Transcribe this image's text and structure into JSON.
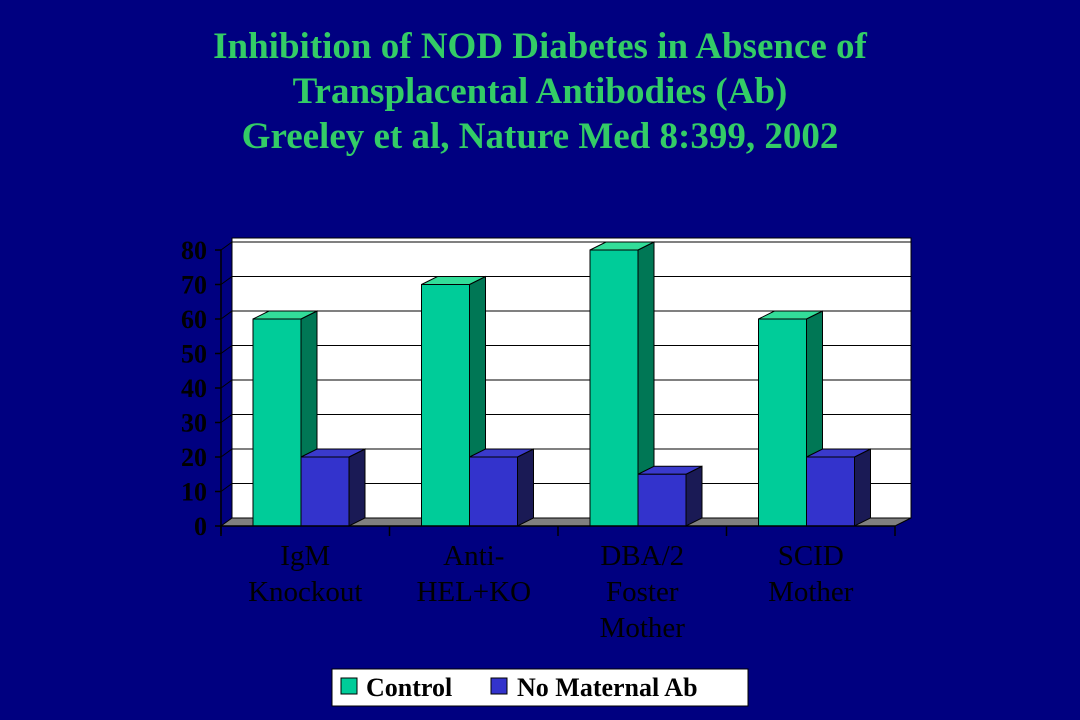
{
  "title_lines": [
    "Inhibition of NOD Diabetes in Absence of",
    "Transplacental Antibodies (Ab)",
    "Greeley et al, Nature Med 8:399, 2002"
  ],
  "chart_data": {
    "type": "bar",
    "style": "3d-clustered-column",
    "categories": [
      [
        "IgM",
        "Knockout"
      ],
      [
        "Anti-",
        "HEL+KO"
      ],
      [
        "DBA/2",
        "Foster",
        "Mother"
      ],
      [
        "SCID",
        "Mother"
      ]
    ],
    "series": [
      {
        "name": "Control",
        "values": [
          60,
          70,
          80,
          60
        ],
        "color": "#00cc99",
        "side_color": "#007755",
        "top_color": "#33dd99"
      },
      {
        "name": "No Maternal Ab",
        "values": [
          20,
          20,
          15,
          20
        ],
        "color": "#3333cc",
        "side_color": "#1a1a55",
        "top_color": "#3a3acc"
      }
    ],
    "ylim": [
      0,
      80
    ],
    "yticks": [
      "0",
      "10",
      "20",
      "30",
      "40",
      "50",
      "60",
      "70",
      "80"
    ],
    "grid": true,
    "legend_position": "bottom",
    "colors": {
      "background": "#000080",
      "title": "#33cc66",
      "text": "#000000",
      "floor": "#808080"
    }
  }
}
